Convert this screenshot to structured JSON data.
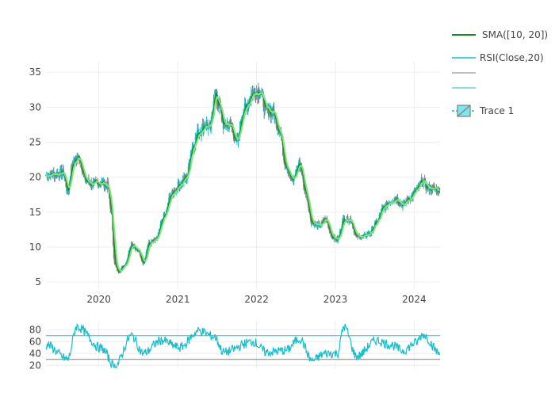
{
  "colors": {
    "background": "#ffffff",
    "grid": "#eeeeee",
    "sma": "#1a8a1a",
    "sma_fast": "#7ee67e",
    "rsi": "#17becf",
    "rsi_band": "#17becf",
    "rsi_mid": "#7f7f7f",
    "candle_up": "#17becf",
    "candle_down": "#7f7f7f"
  },
  "legend": {
    "sma": "SMA([10, 20])",
    "rsi": "RSI(Close,20)",
    "trace1": "Trace 1"
  },
  "chart_data": [
    {
      "type": "candlestick",
      "name": "price",
      "xlim": [
        "2019-05-01",
        "2024-04-30"
      ],
      "ylim": [
        4,
        36.5
      ],
      "x_ticks": [
        "2020",
        "2021",
        "2022",
        "2023",
        "2024"
      ],
      "x_tick_dates": [
        "2020-01-01",
        "2021-01-01",
        "2022-01-01",
        "2023-01-01",
        "2024-01-01"
      ],
      "y_ticks": [
        5,
        10,
        15,
        20,
        25,
        30,
        35
      ],
      "close_keypoints": [
        [
          "2019-05-01",
          20.3
        ],
        [
          "2019-06-15",
          20.5
        ],
        [
          "2019-07-20",
          20.6
        ],
        [
          "2019-08-10",
          18.0
        ],
        [
          "2019-09-01",
          22.0
        ],
        [
          "2019-10-01",
          22.8
        ],
        [
          "2019-11-01",
          19.5
        ],
        [
          "2019-12-01",
          19.0
        ],
        [
          "2020-01-10",
          19.2
        ],
        [
          "2020-02-10",
          18.8
        ],
        [
          "2020-02-28",
          15.0
        ],
        [
          "2020-03-15",
          7.5
        ],
        [
          "2020-04-01",
          6.5
        ],
        [
          "2020-05-01",
          7.5
        ],
        [
          "2020-06-01",
          10.5
        ],
        [
          "2020-07-01",
          9.5
        ],
        [
          "2020-07-25",
          7.8
        ],
        [
          "2020-08-20",
          10.5
        ],
        [
          "2020-09-20",
          11.0
        ],
        [
          "2020-11-01",
          14.5
        ],
        [
          "2020-12-01",
          17.5
        ],
        [
          "2021-01-10",
          19.0
        ],
        [
          "2021-02-10",
          20.0
        ],
        [
          "2021-03-10",
          24.5
        ],
        [
          "2021-04-10",
          26.5
        ],
        [
          "2021-05-10",
          27.5
        ],
        [
          "2021-06-01",
          27.0
        ],
        [
          "2021-06-20",
          32.0
        ],
        [
          "2021-07-10",
          30.5
        ],
        [
          "2021-08-01",
          27.5
        ],
        [
          "2021-09-01",
          27.5
        ],
        [
          "2021-10-01",
          25.0
        ],
        [
          "2021-11-01",
          29.5
        ],
        [
          "2021-12-15",
          32.0
        ],
        [
          "2022-01-15",
          32.5
        ],
        [
          "2022-02-15",
          29.5
        ],
        [
          "2022-03-15",
          29.5
        ],
        [
          "2022-04-15",
          27.0
        ],
        [
          "2022-05-15",
          22.0
        ],
        [
          "2022-06-15",
          19.5
        ],
        [
          "2022-07-20",
          22.0
        ],
        [
          "2022-08-15",
          18.0
        ],
        [
          "2022-09-15",
          13.5
        ],
        [
          "2022-10-20",
          13.0
        ],
        [
          "2022-11-15",
          14.0
        ],
        [
          "2022-12-20",
          11.5
        ],
        [
          "2023-01-10",
          11.0
        ],
        [
          "2023-02-10",
          14.0
        ],
        [
          "2023-03-10",
          14.0
        ],
        [
          "2023-04-10",
          11.5
        ],
        [
          "2023-05-10",
          11.5
        ],
        [
          "2023-06-10",
          12.0
        ],
        [
          "2023-07-10",
          13.5
        ],
        [
          "2023-08-10",
          15.5
        ],
        [
          "2023-09-10",
          16.5
        ],
        [
          "2023-10-10",
          17.0
        ],
        [
          "2023-11-10",
          16.0
        ],
        [
          "2023-12-10",
          17.0
        ],
        [
          "2024-01-10",
          18.0
        ],
        [
          "2024-02-10",
          19.5
        ],
        [
          "2024-03-01",
          18.5
        ],
        [
          "2024-04-10",
          18.3
        ],
        [
          "2024-04-30",
          18.0
        ]
      ]
    },
    {
      "type": "line",
      "name": "rsi",
      "ylim": [
        15,
        95
      ],
      "y_ticks": [
        20,
        40,
        60,
        80
      ],
      "bands": [
        30,
        70
      ],
      "values_keypoints": [
        [
          "2019-05-01",
          55
        ],
        [
          "2019-08-10",
          30
        ],
        [
          "2019-09-20",
          85
        ],
        [
          "2020-01-15",
          48
        ],
        [
          "2020-03-15",
          18
        ],
        [
          "2020-06-01",
          70
        ],
        [
          "2020-07-25",
          40
        ],
        [
          "2020-10-15",
          62
        ],
        [
          "2021-01-10",
          50
        ],
        [
          "2021-04-10",
          78
        ],
        [
          "2021-06-20",
          68
        ],
        [
          "2021-08-01",
          42
        ],
        [
          "2021-12-15",
          60
        ],
        [
          "2022-02-15",
          42
        ],
        [
          "2022-05-15",
          45
        ],
        [
          "2022-07-20",
          65
        ],
        [
          "2022-09-15",
          28
        ],
        [
          "2022-11-15",
          40
        ],
        [
          "2023-01-10",
          40
        ],
        [
          "2023-02-10",
          85
        ],
        [
          "2023-04-10",
          35
        ],
        [
          "2023-07-10",
          62
        ],
        [
          "2023-09-10",
          55
        ],
        [
          "2023-11-10",
          45
        ],
        [
          "2024-01-10",
          58
        ],
        [
          "2024-02-10",
          72
        ],
        [
          "2024-04-30",
          40
        ]
      ]
    }
  ]
}
